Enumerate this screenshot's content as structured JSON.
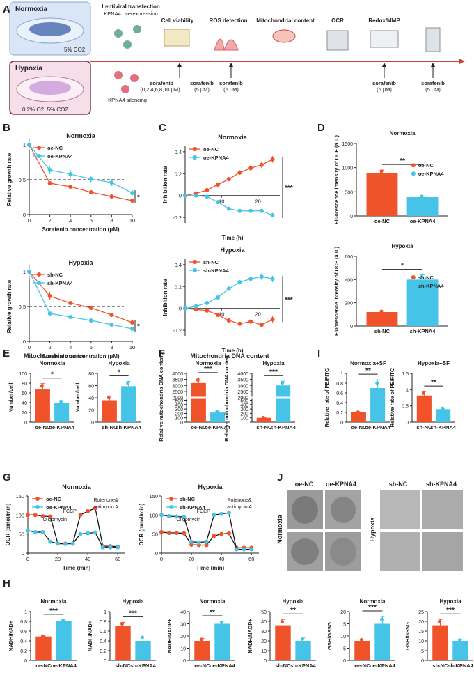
{
  "colors": {
    "red": "#f0522a",
    "blue": "#46c4e8",
    "axis": "#222",
    "timeline": "#c8443b",
    "norm_box": "#d9e6f7",
    "hyp_box": "#f6dfe9",
    "hyp_border": "#7e3754"
  },
  "panelA": {
    "letter": "A",
    "normoxia": "Normoxia",
    "normoxia_co2": "5% CO2",
    "hypoxia": "Hypoxia",
    "hypoxia_gas": "0.2% O2, 5% CO2",
    "steps": [
      "Lentiviral transfection",
      "Cell viability",
      "ROS detection",
      "Mitochondrial content",
      "OCR",
      "Redox/MMP"
    ],
    "overexpression": "KPNA4 overexpression",
    "silencing": "KPNA4 silencing",
    "treatments": [
      {
        "name": "sorafenib",
        "dose": "(0,2,4,6,8,10 μM)"
      },
      {
        "name": "sorafenib",
        "dose": "(5 μM)"
      },
      {
        "name": "sorafenib",
        "dose": "(5 μM)"
      },
      {
        "name": "sorafenib",
        "dose": "(5 μM)"
      },
      {
        "name": "sorafenib",
        "dose": "(5 μM)"
      }
    ]
  },
  "letters": {
    "B": "B",
    "C": "C",
    "D": "D",
    "E": "E",
    "F": "F",
    "I": "I",
    "G": "G",
    "J": "J",
    "H": "H"
  },
  "panelE": {
    "title": "Mitochondria number"
  },
  "panelF": {
    "title": "Mitochondria DNA content"
  },
  "panelJ": {
    "cols": [
      "oe-NC",
      "oe-KPNA4",
      "sh-NC",
      "sh-KPNA4"
    ],
    "rows": [
      "Normoxia",
      "Hypoxia"
    ]
  },
  "chart_data": [
    {
      "id": "B1",
      "type": "line",
      "title": "Normoxia",
      "xlabel": "Sorafenib concentration (μM)",
      "ylabel": "Relative growth rate",
      "xlim": [
        0,
        10
      ],
      "ylim": [
        0,
        1.0
      ],
      "xticks": [
        0,
        2,
        4,
        6,
        8,
        10
      ],
      "yticks": [
        0,
        0.5,
        1.0
      ],
      "ref_line": 0.5,
      "sig": "*",
      "series": [
        {
          "name": "oe-NC",
          "color": "red",
          "x": [
            0,
            2,
            4,
            6,
            8,
            10
          ],
          "y": [
            1.0,
            0.45,
            0.4,
            0.32,
            0.26,
            0.2
          ],
          "err": [
            0.08,
            0.03,
            0.03,
            0.02,
            0.02,
            0.02
          ]
        },
        {
          "name": "oe-KPNA4",
          "color": "blue",
          "x": [
            0,
            2,
            4,
            6,
            8,
            10
          ],
          "y": [
            1.0,
            0.64,
            0.58,
            0.51,
            0.46,
            0.31
          ],
          "err": [
            0.07,
            0.06,
            0.06,
            0.05,
            0.05,
            0.04
          ]
        }
      ]
    },
    {
      "id": "B2",
      "type": "line",
      "title": "Hypoxia",
      "xlabel": "Sorafenib concentration (μM)",
      "ylabel": "Relative growth rate",
      "xlim": [
        0,
        10
      ],
      "ylim": [
        0,
        1.0
      ],
      "xticks": [
        0,
        2,
        4,
        6,
        8,
        10
      ],
      "yticks": [
        0,
        0.5,
        1.0
      ],
      "ref_line": 0.5,
      "sig": "*",
      "series": [
        {
          "name": "sh-NC",
          "color": "red",
          "x": [
            0,
            2,
            4,
            6,
            8,
            10
          ],
          "y": [
            1.0,
            0.65,
            0.55,
            0.48,
            0.38,
            0.27
          ],
          "err": [
            0.1,
            0.06,
            0.03,
            0.03,
            0.03,
            0.03
          ]
        },
        {
          "name": "sh-KPNA4",
          "color": "blue",
          "x": [
            0,
            2,
            4,
            6,
            8,
            10
          ],
          "y": [
            1.0,
            0.4,
            0.35,
            0.3,
            0.24,
            0.18
          ],
          "err": [
            0.06,
            0.03,
            0.03,
            0.02,
            0.02,
            0.02
          ]
        }
      ]
    },
    {
      "id": "C1",
      "type": "line",
      "title": "Normoxia",
      "xlabel": "Time (h)",
      "ylabel": "Inhibition rate",
      "xlim": [
        0,
        26
      ],
      "ylim": [
        -0.25,
        0.45
      ],
      "xticks": [
        10,
        20
      ],
      "yticks": [
        -0.2,
        0.0,
        0.2,
        0.4
      ],
      "sig": "***",
      "series": [
        {
          "name": "oe-NC",
          "color": "red",
          "x": [
            0,
            3,
            6,
            9,
            12,
            15,
            18,
            21,
            24
          ],
          "y": [
            0,
            0.02,
            0.05,
            0.1,
            0.15,
            0.21,
            0.25,
            0.28,
            0.33
          ],
          "err": [
            0,
            0.01,
            0.01,
            0.02,
            0.02,
            0.02,
            0.03,
            0.03,
            0.03
          ]
        },
        {
          "name": "oe-KPNA4",
          "color": "blue",
          "x": [
            0,
            3,
            6,
            9,
            12,
            15,
            18,
            21,
            24
          ],
          "y": [
            0,
            0,
            -0.01,
            -0.06,
            -0.12,
            -0.14,
            -0.14,
            -0.14,
            -0.18
          ],
          "err": [
            0,
            0.01,
            0.01,
            0.01,
            0.01,
            0.01,
            0.01,
            0.01,
            0.02
          ]
        }
      ]
    },
    {
      "id": "C2",
      "type": "line",
      "title": "Hypoxia",
      "xlabel": "Time (h)",
      "ylabel": "Inhibition rate",
      "xlim": [
        0,
        26
      ],
      "ylim": [
        -0.25,
        0.45
      ],
      "xticks": [
        10,
        20
      ],
      "yticks": [
        -0.2,
        0.0,
        0.2,
        0.4
      ],
      "sig": "***",
      "series": [
        {
          "name": "sh-NC",
          "color": "red",
          "x": [
            0,
            3,
            6,
            9,
            12,
            15,
            18,
            21,
            24
          ],
          "y": [
            0,
            -0.01,
            -0.02,
            -0.06,
            -0.11,
            -0.14,
            -0.12,
            -0.15,
            -0.1
          ],
          "err": [
            0,
            0.01,
            0.01,
            0.01,
            0.01,
            0.01,
            0.01,
            0.02,
            0.03
          ]
        },
        {
          "name": "sh-KPNA4",
          "color": "blue",
          "x": [
            0,
            3,
            6,
            9,
            12,
            15,
            18,
            21,
            24
          ],
          "y": [
            0,
            0.02,
            0.05,
            0.1,
            0.18,
            0.24,
            0.27,
            0.29,
            0.27
          ],
          "err": [
            0,
            0.01,
            0.01,
            0.02,
            0.02,
            0.02,
            0.02,
            0.03,
            0.03
          ]
        }
      ]
    },
    {
      "id": "D1",
      "type": "bar",
      "title": "Normoxia",
      "ylabel": "Fluorescence intensity of DCF (a.u.)",
      "categories": [
        "oe-NC",
        "oe-KPNA4"
      ],
      "values": [
        890,
        390
      ],
      "err": [
        60,
        25
      ],
      "ylim": [
        0,
        1500
      ],
      "yticks": [
        0,
        500,
        1000,
        1500
      ],
      "sig": "**",
      "legend": true
    },
    {
      "id": "D2",
      "type": "bar",
      "title": "Hypoxia",
      "ylabel": "Fluorescence intensity of DCF (a.u.)",
      "categories": [
        "sh-NC",
        "sh-KPNA4"
      ],
      "values": [
        120,
        400
      ],
      "err": [
        10,
        40
      ],
      "ylim": [
        0,
        600
      ],
      "yticks": [
        0,
        200,
        400,
        600
      ],
      "sig": "*",
      "legend": true
    },
    {
      "id": "E1",
      "type": "bar",
      "title": "Normoxia",
      "ylabel": "Number/cell",
      "categories": [
        "oe-NC",
        "oe-KPNA4"
      ],
      "values": [
        67,
        40
      ],
      "err": [
        12,
        4
      ],
      "ylim": [
        0,
        100
      ],
      "yticks": [
        0,
        20,
        40,
        60,
        80,
        100
      ],
      "sig": "*"
    },
    {
      "id": "E2",
      "type": "bar",
      "title": "Hypoxia",
      "ylabel": "Number/cell",
      "categories": [
        "sh-NC",
        "sh-KPNA4"
      ],
      "values": [
        36,
        59
      ],
      "err": [
        7,
        8
      ],
      "ylim": [
        0,
        80
      ],
      "yticks": [
        0,
        20,
        40,
        60,
        80
      ],
      "sig": "*"
    },
    {
      "id": "F1",
      "type": "bar",
      "title": "Normoxia",
      "ylabel": "Relative mitochondria DNA content",
      "categories": [
        "oe-NC",
        "oe-KPNA4"
      ],
      "values": [
        3200,
        220
      ],
      "err": [
        400,
        30
      ],
      "broken": [
        500,
        2000
      ],
      "ylim": [
        0,
        4000
      ],
      "yticks": [
        0,
        100,
        200,
        300,
        400,
        500,
        2000,
        2500,
        3000,
        3500,
        4000
      ],
      "sig": "***"
    },
    {
      "id": "F2",
      "type": "bar",
      "title": "Hypoxia",
      "ylabel": "Relative mitochondria DNA content",
      "categories": [
        "sh-NC",
        "sh-KPNA4"
      ],
      "values": [
        100,
        3000
      ],
      "err": [
        10,
        350
      ],
      "broken": [
        500,
        2000
      ],
      "ylim": [
        0,
        4000
      ],
      "yticks": [
        0,
        100,
        200,
        300,
        400,
        500,
        2000,
        2500,
        3000,
        3500,
        4000
      ],
      "sig": "***"
    },
    {
      "id": "I1",
      "type": "bar",
      "title": "Normoxia+SF",
      "ylabel": "Relative rate of PE/FITC",
      "categories": [
        "oe-NC",
        "oe-KPNA4"
      ],
      "values": [
        0.2,
        0.7
      ],
      "err": [
        0.01,
        0.17
      ],
      "ylim": [
        0,
        1.0
      ],
      "yticks": [
        0,
        0.2,
        0.4,
        0.6,
        0.8,
        1.0
      ],
      "sig": "**"
    },
    {
      "id": "I2",
      "type": "bar",
      "title": "Hypoxia+SF",
      "ylabel": "Relative rate of PE/FITC",
      "categories": [
        "sh-NC",
        "sh-KPNA4"
      ],
      "values": [
        0.82,
        0.4
      ],
      "err": [
        0.12,
        0.02
      ],
      "ylim": [
        0,
        1.5
      ],
      "yticks": [
        0,
        0.5,
        1.0,
        1.5
      ],
      "sig": "**"
    },
    {
      "id": "G1",
      "type": "line",
      "title": "Normoxia",
      "xlabel": "Time (min)",
      "ylabel": "OCR (pmol/min)",
      "xlim": [
        0,
        65
      ],
      "ylim": [
        0,
        150
      ],
      "xticks": [
        0,
        20,
        40,
        60
      ],
      "yticks": [
        0,
        50,
        100,
        150
      ],
      "annotations": [
        {
          "text": "Oligomycin",
          "x": 18
        },
        {
          "text": "FCCP",
          "x": 28
        },
        {
          "text": "Rotenone&",
          "x": 52
        },
        {
          "text": "antimycin A",
          "x": 52
        }
      ],
      "series": [
        {
          "name": "oe-NC",
          "color": "red",
          "x": [
            0,
            5,
            10,
            15,
            20,
            25,
            30,
            35,
            40,
            45,
            50,
            55,
            60
          ],
          "y": [
            100,
            100,
            97,
            96,
            25,
            25,
            25,
            100,
            110,
            118,
            18,
            18,
            17
          ]
        },
        {
          "name": "oe-KPNA4",
          "color": "blue",
          "x": [
            0,
            5,
            10,
            15,
            20,
            25,
            30,
            35,
            40,
            45,
            50,
            55,
            60
          ],
          "y": [
            59,
            55,
            55,
            30,
            25,
            24,
            25,
            50,
            52,
            54,
            15,
            15,
            15
          ]
        }
      ]
    },
    {
      "id": "G2",
      "type": "line",
      "title": "Hypoxia",
      "xlabel": "Time (min)",
      "ylabel": "OCR (pmol/min)",
      "xlim": [
        0,
        65
      ],
      "ylim": [
        0,
        150
      ],
      "xticks": [
        0,
        20,
        40,
        60
      ],
      "yticks": [
        0,
        50,
        100,
        150
      ],
      "annotations": [
        {
          "text": "Oligomycin",
          "x": 18
        },
        {
          "text": "FCCP",
          "x": 28
        },
        {
          "text": "Rotenone&",
          "x": 52
        },
        {
          "text": "antimycin A",
          "x": 52
        }
      ],
      "series": [
        {
          "name": "sh-NC",
          "color": "red",
          "x": [
            0,
            5,
            10,
            15,
            20,
            25,
            30,
            35,
            40,
            45,
            50,
            55,
            60
          ],
          "y": [
            55,
            53,
            53,
            52,
            22,
            21,
            21,
            45,
            50,
            52,
            14,
            14,
            14
          ]
        },
        {
          "name": "sh-KPNA4",
          "color": "blue",
          "x": [
            0,
            5,
            10,
            15,
            20,
            25,
            30,
            35,
            40,
            45,
            50,
            55,
            60
          ],
          "y": [
            100,
            97,
            96,
            95,
            30,
            28,
            30,
            100,
            103,
            106,
            10,
            10,
            10
          ]
        }
      ]
    },
    {
      "id": "H1",
      "type": "bar",
      "title": "Normoxia",
      "ylabel": "NADH/NAD+",
      "categories": [
        "oe-NC",
        "oe-KPNA4"
      ],
      "values": [
        0.49,
        0.8
      ],
      "err": [
        0.01,
        0.03
      ],
      "ylim": [
        0,
        1.0
      ],
      "yticks": [
        0,
        0.2,
        0.4,
        0.6,
        0.8,
        1.0
      ],
      "sig": "***"
    },
    {
      "id": "H2",
      "type": "bar",
      "title": "Hypoxia",
      "ylabel": "NADH/NAD+",
      "categories": [
        "sh-NC",
        "sh-KPNA4"
      ],
      "values": [
        0.7,
        0.4
      ],
      "err": [
        0.08,
        0.12
      ],
      "ylim": [
        0,
        1.0
      ],
      "yticks": [
        0,
        0.2,
        0.4,
        0.6,
        0.8,
        1.0
      ],
      "sig": "***"
    },
    {
      "id": "H3",
      "type": "bar",
      "title": "Normoxia",
      "ylabel": "NADH/NADP+",
      "categories": [
        "oe-NC",
        "oe-KPNA4"
      ],
      "values": [
        16,
        30
      ],
      "err": [
        2,
        2
      ],
      "ylim": [
        0,
        40
      ],
      "yticks": [
        0,
        10,
        20,
        30,
        40
      ],
      "sig": "**"
    },
    {
      "id": "H4",
      "type": "bar",
      "title": "Hypoxia",
      "ylabel": "NADH/NADP+",
      "categories": [
        "sh-NC",
        "sh-KPNA4"
      ],
      "values": [
        36,
        20
      ],
      "err": [
        6,
        3
      ],
      "ylim": [
        0,
        50
      ],
      "yticks": [
        0,
        10,
        20,
        30,
        40,
        50
      ],
      "sig": "**"
    },
    {
      "id": "H5",
      "type": "bar",
      "title": "Normoxia",
      "ylabel": "GSH/GSSG",
      "categories": [
        "oe-NC",
        "oe-KPNA4"
      ],
      "values": [
        8,
        15
      ],
      "err": [
        0.7,
        3
      ],
      "ylim": [
        0,
        20
      ],
      "yticks": [
        0,
        5,
        10,
        15,
        20
      ],
      "sig": "***"
    },
    {
      "id": "H6",
      "type": "bar",
      "title": "Hypoxia",
      "ylabel": "GSH/GSSG",
      "categories": [
        "sh-NC",
        "sh-KPNA4"
      ],
      "values": [
        18,
        10
      ],
      "err": [
        3,
        0.7
      ],
      "ylim": [
        0,
        25
      ],
      "yticks": [
        0,
        5,
        10,
        15,
        20,
        25
      ],
      "sig": "***"
    }
  ]
}
